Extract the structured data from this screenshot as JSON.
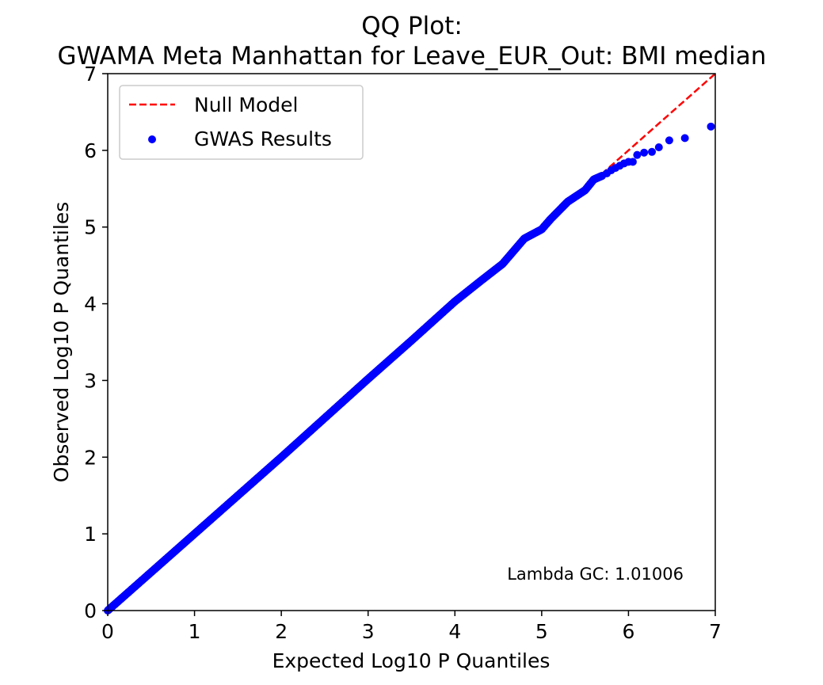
{
  "chart_data": {
    "type": "scatter",
    "title_line1": "QQ Plot:",
    "title_line2": "GWAMA Meta Manhattan for Leave_EUR_Out: BMI median",
    "xlabel": "Expected Log10 P Quantiles",
    "ylabel": "Observed Log10 P Quantiles",
    "xlim": [
      0,
      7
    ],
    "ylim": [
      0,
      7
    ],
    "xticks": [
      0,
      1,
      2,
      3,
      4,
      5,
      6,
      7
    ],
    "yticks": [
      0,
      1,
      2,
      3,
      4,
      5,
      6,
      7
    ],
    "legend_position": "top-left",
    "null_model": {
      "name": "Null Model",
      "color": "#ff0000",
      "style": "dashed",
      "x": [
        0,
        7
      ],
      "y": [
        0,
        7
      ]
    },
    "gwas": {
      "name": "GWAS Results",
      "color": "#0000ff",
      "dense_curve": [
        [
          0,
          0
        ],
        [
          1,
          1
        ],
        [
          2,
          2
        ],
        [
          3,
          3.02
        ],
        [
          3.5,
          3.52
        ],
        [
          4,
          4.03
        ],
        [
          4.3,
          4.3
        ],
        [
          4.55,
          4.52
        ],
        [
          4.8,
          4.85
        ],
        [
          5.0,
          4.97
        ],
        [
          5.1,
          5.1
        ],
        [
          5.3,
          5.33
        ],
        [
          5.5,
          5.48
        ],
        [
          5.6,
          5.62
        ],
        [
          5.7,
          5.67
        ]
      ],
      "sparse_points": [
        [
          5.75,
          5.7
        ],
        [
          5.8,
          5.74
        ],
        [
          5.85,
          5.77
        ],
        [
          5.9,
          5.8
        ],
        [
          5.95,
          5.83
        ],
        [
          6.0,
          5.85
        ],
        [
          6.05,
          5.85
        ],
        [
          6.1,
          5.94
        ],
        [
          6.18,
          5.97
        ],
        [
          6.27,
          5.98
        ],
        [
          6.35,
          6.04
        ],
        [
          6.47,
          6.13
        ],
        [
          6.65,
          6.16
        ],
        [
          6.95,
          6.31
        ]
      ]
    },
    "annotation": "Lambda GC: 1.01006"
  }
}
